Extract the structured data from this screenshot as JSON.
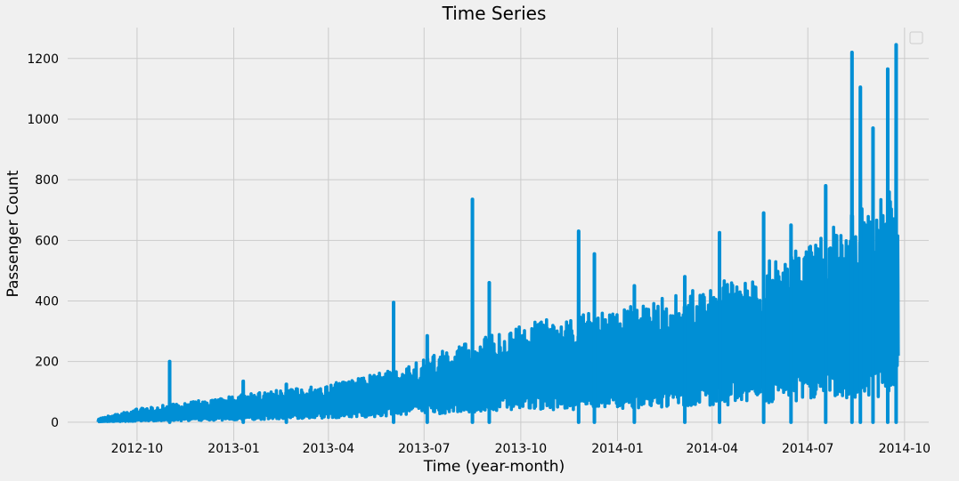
{
  "chart_data": {
    "type": "line",
    "title": "Time Series",
    "xlabel": "Time (year-month)",
    "ylabel": "Passenger Count",
    "x_start": "2012-08-25",
    "x_end": "2014-09-25",
    "xlim": [
      "2012-07-27",
      "2014-10-24"
    ],
    "ylim": [
      -62,
      1302
    ],
    "x_ticks": [
      "2012-10",
      "2013-01",
      "2013-04",
      "2013-07",
      "2013-10",
      "2014-01",
      "2014-04",
      "2014-07",
      "2014-10"
    ],
    "y_ticks": [
      0,
      200,
      400,
      600,
      800,
      1000,
      1200
    ],
    "grid": true,
    "legend": "top-right, empty",
    "series": [
      {
        "color": "#008fd5",
        "trend": [
          [
            "2012-08-25",
            2,
            10
          ],
          [
            "2012-10-01",
            8,
            35
          ],
          [
            "2013-01-01",
            18,
            70
          ],
          [
            "2013-04-01",
            35,
            100
          ],
          [
            "2013-06-01",
            50,
            140
          ],
          [
            "2013-07-01",
            65,
            170
          ],
          [
            "2013-10-01",
            95,
            260
          ],
          [
            "2014-01-01",
            110,
            300
          ],
          [
            "2014-04-01",
            135,
            360
          ],
          [
            "2014-07-01",
            175,
            470
          ],
          [
            "2014-09-25",
            220,
            640
          ]
        ],
        "spikes": [
          [
            "2012-11-01",
            200
          ],
          [
            "2013-01-10",
            135
          ],
          [
            "2013-02-20",
            125
          ],
          [
            "2013-06-02",
            395
          ],
          [
            "2013-07-04",
            285
          ],
          [
            "2013-08-16",
            735
          ],
          [
            "2013-09-01",
            460
          ],
          [
            "2013-11-25",
            630
          ],
          [
            "2013-12-10",
            555
          ],
          [
            "2014-01-17",
            450
          ],
          [
            "2014-03-06",
            480
          ],
          [
            "2014-04-08",
            625
          ],
          [
            "2014-05-20",
            690
          ],
          [
            "2014-06-15",
            650
          ],
          [
            "2014-07-18",
            780
          ],
          [
            "2014-08-12",
            1220
          ],
          [
            "2014-08-20",
            1105
          ],
          [
            "2014-09-01",
            970
          ],
          [
            "2014-09-15",
            1165
          ],
          [
            "2014-09-23",
            1245
          ]
        ]
      }
    ]
  }
}
